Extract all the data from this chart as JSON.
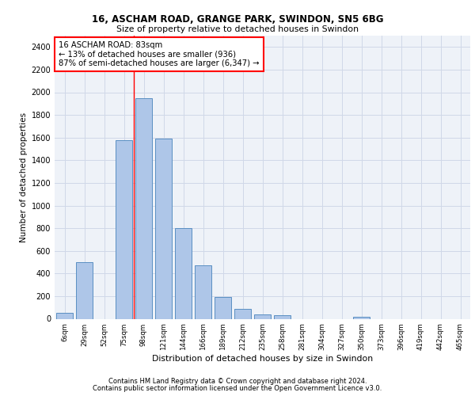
{
  "title1": "16, ASCHAM ROAD, GRANGE PARK, SWINDON, SN5 6BG",
  "title2": "Size of property relative to detached houses in Swindon",
  "xlabel": "Distribution of detached houses by size in Swindon",
  "ylabel": "Number of detached properties",
  "categories": [
    "6sqm",
    "29sqm",
    "52sqm",
    "75sqm",
    "98sqm",
    "121sqm",
    "144sqm",
    "166sqm",
    "189sqm",
    "212sqm",
    "235sqm",
    "258sqm",
    "281sqm",
    "304sqm",
    "327sqm",
    "350sqm",
    "373sqm",
    "396sqm",
    "419sqm",
    "442sqm",
    "465sqm"
  ],
  "values": [
    55,
    500,
    0,
    1580,
    1950,
    1590,
    800,
    475,
    195,
    90,
    35,
    28,
    0,
    0,
    0,
    20,
    0,
    0,
    0,
    0,
    0
  ],
  "bar_color": "#aec6e8",
  "bar_edge_color": "#5a8fc2",
  "grid_color": "#d0d8e8",
  "background_color": "#eef2f8",
  "annotation_text": "16 ASCHAM ROAD: 83sqm\n← 13% of detached houses are smaller (936)\n87% of semi-detached houses are larger (6,347) →",
  "footer1": "Contains HM Land Registry data © Crown copyright and database right 2024.",
  "footer2": "Contains public sector information licensed under the Open Government Licence v3.0.",
  "ylim": [
    0,
    2500
  ],
  "yticks": [
    0,
    200,
    400,
    600,
    800,
    1000,
    1200,
    1400,
    1600,
    1800,
    2000,
    2200,
    2400
  ]
}
